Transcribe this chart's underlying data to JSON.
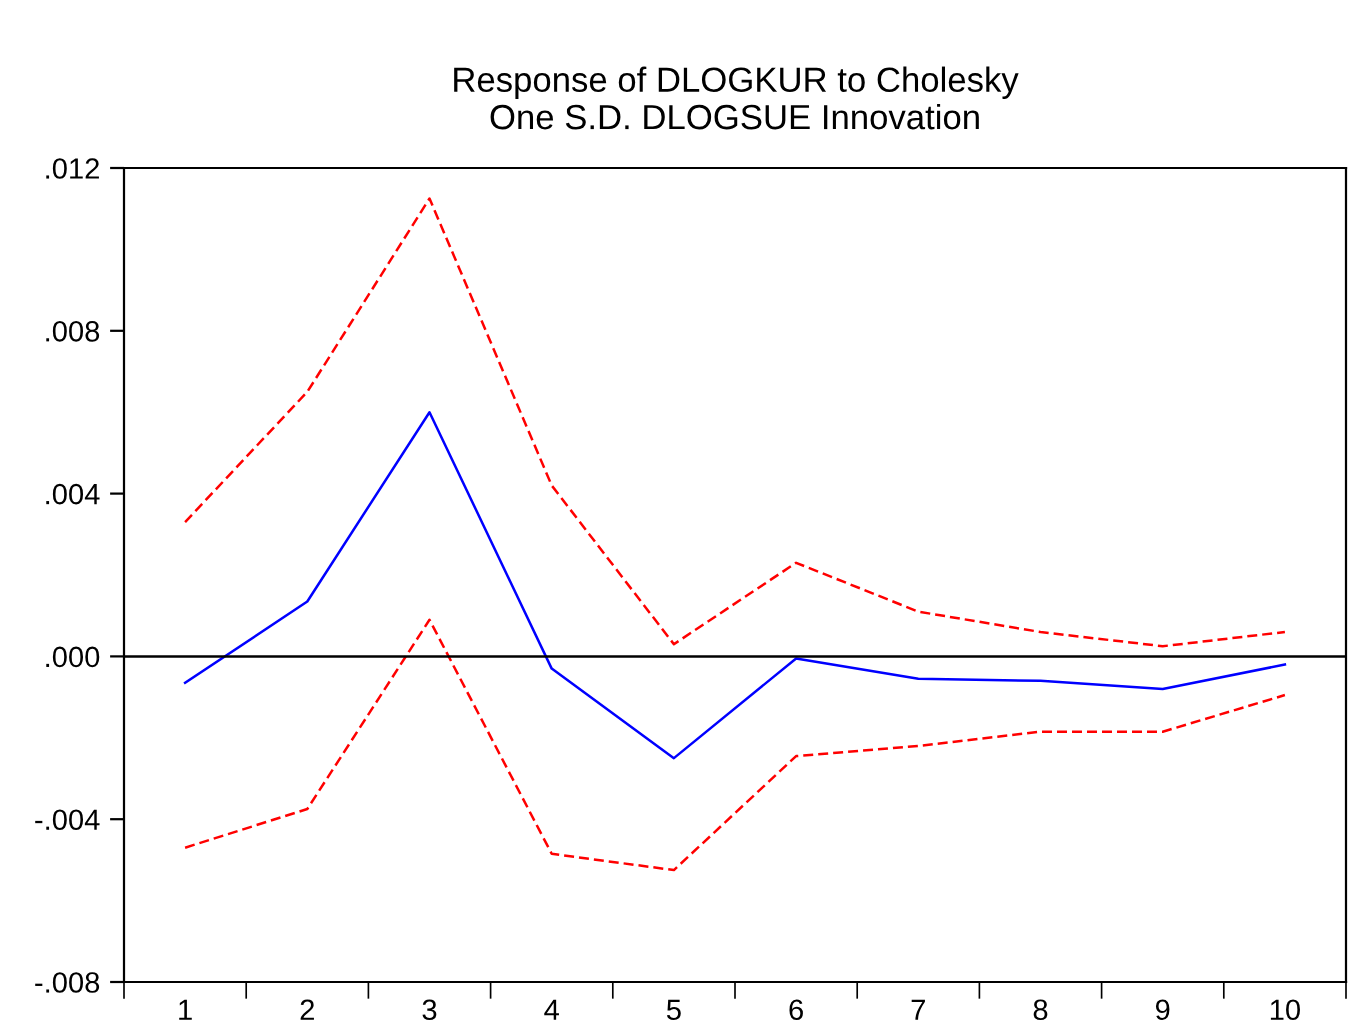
{
  "chart_data": {
    "type": "line",
    "title": "Response of DLOGKUR to Cholesky\nOne S.D. DLOGSUE Innovation",
    "categories": [
      "1",
      "2",
      "3",
      "4",
      "5",
      "6",
      "7",
      "8",
      "9",
      "10"
    ],
    "series": [
      {
        "color": "#0000ff",
        "line_style": "solid",
        "values": [
          -0.00065,
          0.00135,
          0.006,
          -0.0003,
          -0.0025,
          -5e-05,
          -0.00055,
          -0.0006,
          -0.0008,
          -0.0002
        ]
      },
      {
        "color": "#ff0000",
        "line_style": "dashed",
        "values": [
          0.0033,
          0.0065,
          0.01125,
          0.0042,
          0.0003,
          0.0023,
          0.0011,
          0.0006,
          0.00025,
          0.0006
        ]
      },
      {
        "color": "#ff0000",
        "line_style": "dashed",
        "values": [
          -0.0047,
          -0.00375,
          0.0009,
          -0.00485,
          -0.00525,
          -0.00245,
          -0.0022,
          -0.00185,
          -0.00185,
          -0.00095
        ]
      }
    ],
    "ylim": [
      -0.008,
      0.012
    ],
    "yticks": [
      {
        "value": -0.008,
        "label": "-.008"
      },
      {
        "value": -0.004,
        "label": "-.004"
      },
      {
        "value": 0,
        "label": ".000"
      },
      {
        "value": 0.004,
        "label": ".004"
      },
      {
        "value": 0.008,
        "label": ".008"
      },
      {
        "value": 0.012,
        "label": ".012"
      }
    ],
    "ref_lines": [
      {
        "axis": "y",
        "value": 0,
        "color": "#000000"
      }
    ],
    "grid": false,
    "legend": false
  }
}
